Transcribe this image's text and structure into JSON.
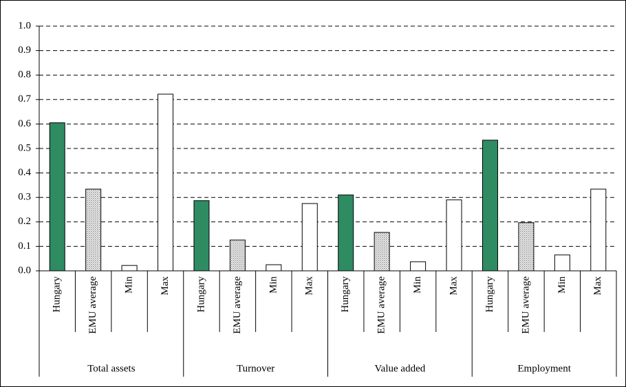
{
  "chart_data": {
    "type": "bar",
    "groups": [
      {
        "name": "Total assets",
        "categories": [
          "Hungary",
          "EMU average",
          "Min",
          "Max"
        ],
        "values": [
          0.605,
          0.334,
          0.022,
          0.722
        ]
      },
      {
        "name": "Turnover",
        "categories": [
          "Hungary",
          "EMU average",
          "Min",
          "Max"
        ],
        "values": [
          0.287,
          0.126,
          0.025,
          0.275
        ]
      },
      {
        "name": "Value added",
        "categories": [
          "Hungary",
          "EMU average",
          "Min",
          "Max"
        ],
        "values": [
          0.31,
          0.157,
          0.037,
          0.29
        ]
      },
      {
        "name": "Employment",
        "categories": [
          "Hungary",
          "EMU average",
          "Min",
          "Max"
        ],
        "values": [
          0.534,
          0.197,
          0.065,
          0.334
        ]
      }
    ],
    "bar_styles": [
      {
        "color": "#2e8b62"
      },
      {
        "color": "#d0d0d0",
        "pattern": "dotted"
      },
      {
        "color": "#ffffff"
      },
      {
        "color": "#ffffff"
      }
    ],
    "ylim": [
      0,
      1
    ],
    "yticks": [
      {
        "value": 0,
        "label": "0.0"
      },
      0.1,
      0.2,
      0.3,
      0.4,
      0.5,
      0.6,
      0.7,
      0.8,
      0.9,
      {
        "value": 1,
        "label": "1.0"
      }
    ],
    "grid": true
  }
}
